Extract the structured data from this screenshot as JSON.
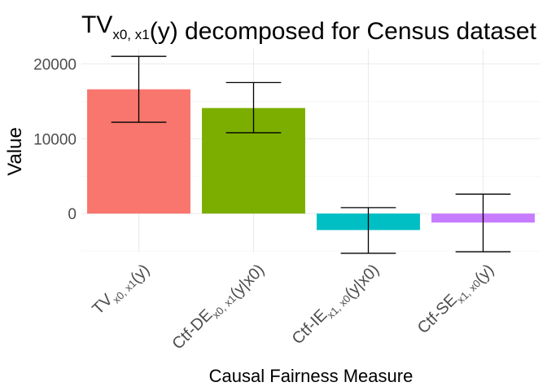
{
  "chart_data": {
    "type": "bar",
    "title": {
      "parts": [
        {
          "t": "TV",
          "sub": false
        },
        {
          "t": "x0, x1",
          "sub": true
        },
        {
          "t": "(y) decomposed for Census dataset",
          "sub": false
        }
      ]
    },
    "xlabel": "Causal Fairness Measure",
    "ylabel": "Value",
    "ylim": [
      -5200,
      22000
    ],
    "yticks": [
      0,
      10000,
      20000
    ],
    "grid": true,
    "categories": [
      {
        "label_parts": [
          {
            "t": "TV",
            "sub": false
          },
          {
            "t": "x0, x1",
            "sub": true
          },
          {
            "t": "(y)",
            "sub": false
          }
        ]
      },
      {
        "label_parts": [
          {
            "t": "Ctf-DE",
            "sub": false
          },
          {
            "t": "x0, x1",
            "sub": true
          },
          {
            "t": "(y|x0)",
            "sub": false
          }
        ]
      },
      {
        "label_parts": [
          {
            "t": "Ctf-IE",
            "sub": false
          },
          {
            "t": "x1, x0",
            "sub": true
          },
          {
            "t": "(y|x0)",
            "sub": false
          }
        ]
      },
      {
        "label_parts": [
          {
            "t": "Ctf-SE",
            "sub": false
          },
          {
            "t": "x1, x0",
            "sub": true
          },
          {
            "t": "(y)",
            "sub": false
          }
        ]
      }
    ],
    "values": [
      16600,
      14100,
      -2200,
      -1200
    ],
    "error_low": [
      12200,
      10800,
      -5300,
      -5100
    ],
    "error_high": [
      21000,
      17500,
      800,
      2600
    ],
    "colors": [
      "#F8766D",
      "#7CAE00",
      "#00BFC4",
      "#C77CFF"
    ]
  }
}
